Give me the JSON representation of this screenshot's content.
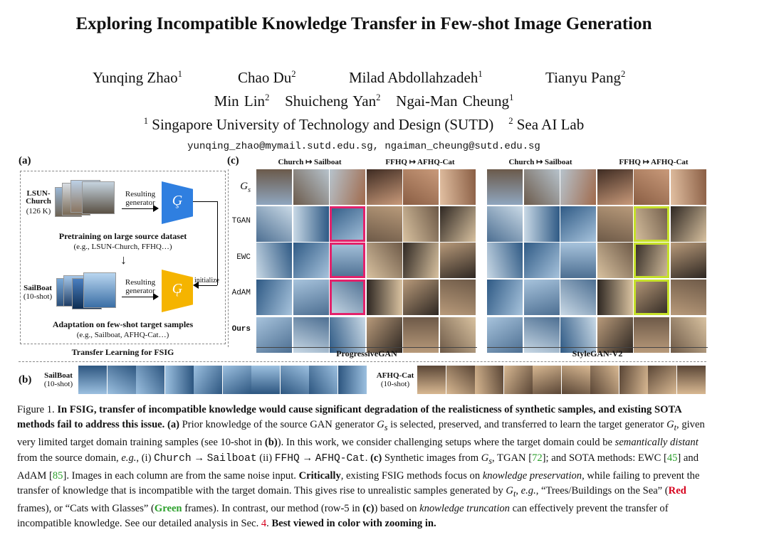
{
  "title": "Exploring Incompatible Knowledge Transfer in Few-shot Image Generation",
  "authors_line1": [
    "Yunqing Zhao",
    "Chao Du",
    "Milad Abdollahzadeh",
    "Tianyu Pang"
  ],
  "authors_line1_sup": [
    "1",
    "2",
    "1",
    "2"
  ],
  "authors_line2": [
    "Min Lin",
    "Shuicheng Yan",
    "Ngai-Man Cheung"
  ],
  "authors_line2_sup": [
    "2",
    "2",
    "1"
  ],
  "affiliations": [
    {
      "sup": "1",
      "name": "Singapore University of Technology and Design (SUTD)"
    },
    {
      "sup": "2",
      "name": "Sea AI Lab"
    }
  ],
  "emails": "yunqing_zhao@mymail.sutd.edu.sg, ngaiman_cheung@sutd.edu.sg",
  "figure": {
    "panel_a": {
      "label": "(a)",
      "source_name": "LSUN-\nChurch",
      "source_size": "(126 K)",
      "resulting_generator": "Resulting\ngenerator",
      "gs": "G",
      "gs_sub": "s",
      "pretrain_title": "Pretraining on large source dataset",
      "pretrain_eg": "(e.g., LSUN-Church, FFHQ…)",
      "arrow": "↓",
      "target_name": "SailBoat",
      "target_size": "(10-shot)",
      "gt": "G",
      "gt_sub": "t",
      "initialize": "initialize",
      "adapt_title": "Adaptation on few-shot target samples",
      "adapt_eg": "(e.g., Sailboat, AFHQ-Cat…)",
      "caption": "Transfer Learning for FSIG"
    },
    "panel_c": {
      "label": "(c)",
      "rows": [
        "G_s",
        "TGAN",
        "EWC",
        "AdAM",
        "Ours"
      ],
      "headers": [
        "Church ↦ Sailboat",
        "FFHQ ↦ AFHQ-Cat",
        "Church ↦ Sailboat",
        "FFHQ ↦ AFHQ-Cat"
      ],
      "group_labels": [
        "ProgressiveGAN",
        "StyleGAN-V2"
      ],
      "frame_colors": {
        "red": "#e3226b",
        "green": "#c6e02a"
      }
    },
    "panel_b": {
      "label": "(b)",
      "left_name": "SailBoat",
      "left_size": "(10-shot)",
      "right_name": "AFHQ-Cat",
      "right_size": "(10-shot)"
    }
  },
  "caption": {
    "figure_no": "Figure 1.",
    "bold_lead": "In FSIG, transfer of incompatible knowledge would cause significant degradation of the realisticness of synthetic samples, and existing SOTA methods fail to address this issue.",
    "a_label": "(a)",
    "a_text_1": "Prior knowledge of the source GAN generator",
    "a_text_2": "is selected, preserved, and transferred to learn the target generator",
    "a_text_3": ", given very limited target domain training samples (see 10-shot in",
    "b_ref": "(b)",
    "a_text_4": "). In this work, we consider challenging setups where the target domain could be",
    "semantically": "semantically distant",
    "a_text_5": "from the source domain,",
    "eg": "e.g.",
    "setup_1": ", (i)",
    "church": "Church",
    "sailboat": "Sailboat",
    "setup_2": "(ii)",
    "ffhq": "FFHQ",
    "afhq": "AFHQ-Cat",
    "c_label": "(c)",
    "c_text_1": "Synthetic images from",
    "c_text_2": ", TGAN [",
    "ref72": "72",
    "c_text_3": "]; and SOTA methods: EWC [",
    "ref45": "45",
    "c_text_4": "] and AdAM [",
    "ref85": "85",
    "c_text_5": "]. Images in each column are from the same noise input.",
    "critically": "Critically",
    "c_text_6": ", existing FSIG methods focus on",
    "kp": "knowledge preservation",
    "c_text_7": ", while failing to prevent the transfer of knowledge that is incompatible with the target domain. This gives rise to unrealistic samples generated by",
    "c_text_8": ",",
    "eg2": "e.g.",
    "c_text_9": ", “Trees/Buildings on the Sea” (",
    "red": "Red",
    "c_text_10": "frames), or “Cats with Glasses” (",
    "green": "Green",
    "c_text_11": "frames). In contrast, our method (row-5 in",
    "c_ref": "(c)",
    "c_text_12": ") based on",
    "kt": "knowledge truncation",
    "c_text_13": "can effectively prevent the transfer of incompatible knowledge. See our detailed analysis in Sec.",
    "sec": "4",
    "c_text_14": ".",
    "best": "Best viewed in color with zooming in."
  }
}
